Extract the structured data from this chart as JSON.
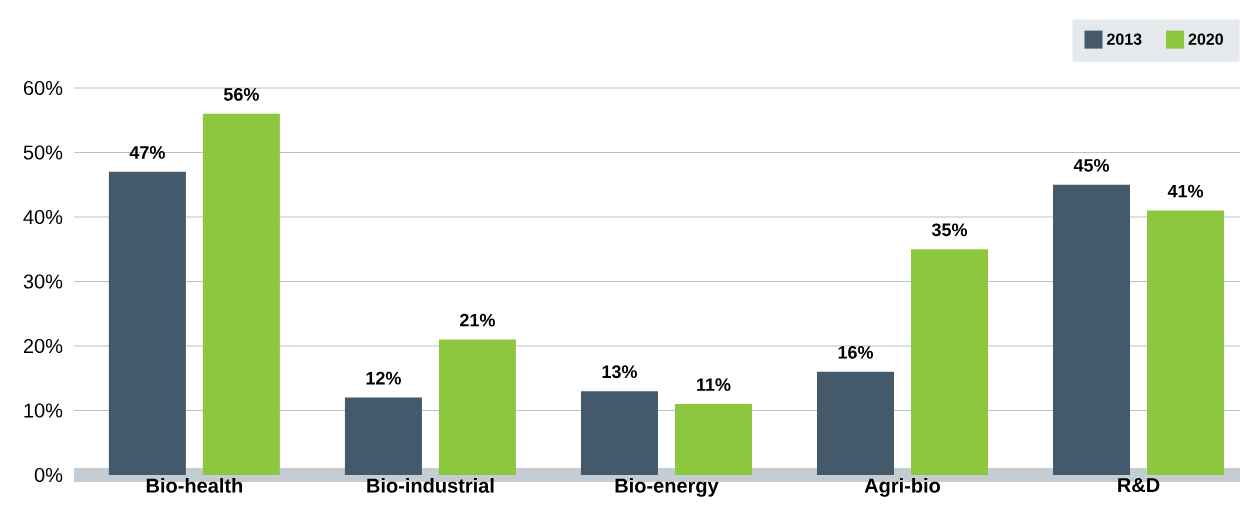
{
  "chart_data": {
    "type": "bar",
    "categories": [
      "Bio-health",
      "Bio-industrial",
      "Bio-energy",
      "Agri-bio",
      "R&D"
    ],
    "series": [
      {
        "name": "2013",
        "color": "#44596a",
        "values": [
          47,
          12,
          13,
          16,
          45
        ],
        "value_labels": [
          "47%",
          "12%",
          "13%",
          "16%",
          "45%"
        ]
      },
      {
        "name": "2020",
        "color": "#8dc63f",
        "values": [
          56,
          21,
          11,
          35,
          41
        ],
        "value_labels": [
          "56%",
          "21%",
          "11%",
          "35%",
          "41%"
        ]
      }
    ],
    "ylim": [
      0,
      60
    ],
    "yticks": [
      {
        "value": 0,
        "label": "0%"
      },
      {
        "value": 10,
        "label": "10%"
      },
      {
        "value": 20,
        "label": "20%"
      },
      {
        "value": 30,
        "label": "30%"
      },
      {
        "value": 40,
        "label": "40%"
      },
      {
        "value": 50,
        "label": "50%"
      },
      {
        "value": 60,
        "label": "60%"
      }
    ],
    "grid": "y",
    "legend": "top right"
  }
}
